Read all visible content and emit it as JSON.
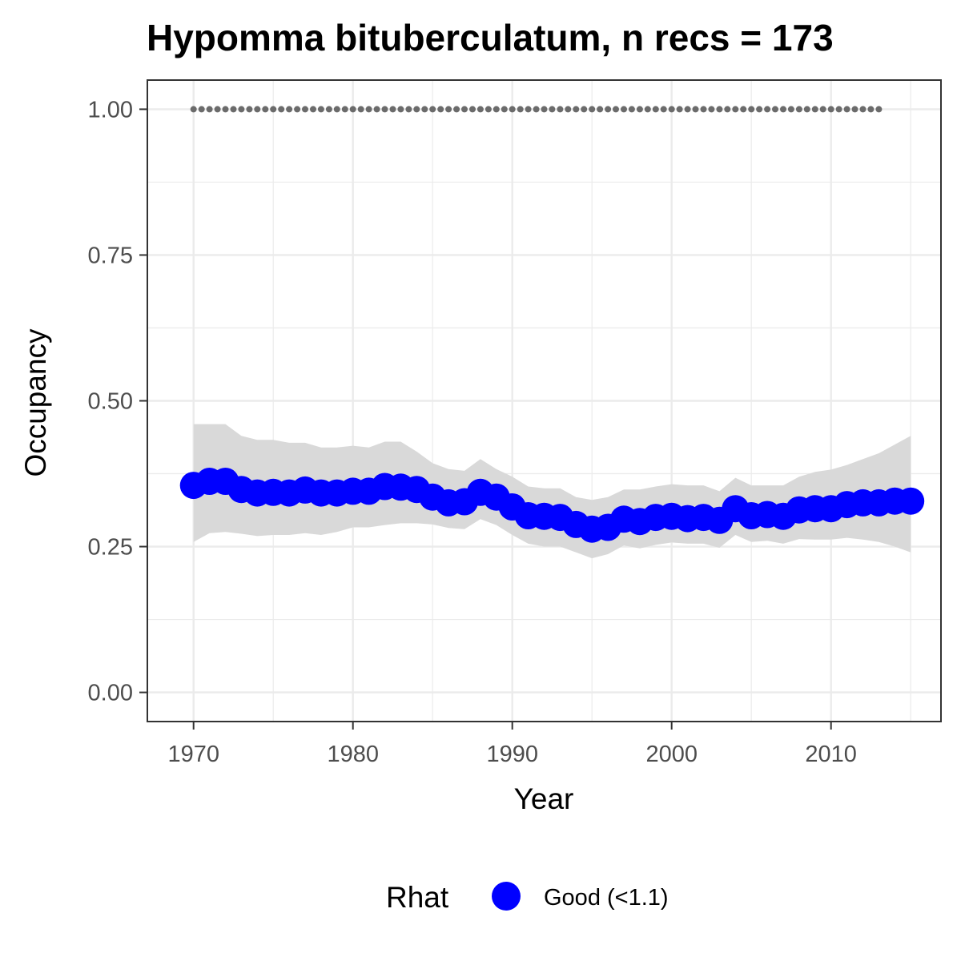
{
  "chart_data": {
    "type": "line",
    "title": "Hypomma bituberculatum, n recs = 173",
    "xlabel": "Year",
    "ylabel": "Occupancy",
    "xlim": [
      1967.1,
      2016.9
    ],
    "ylim": [
      -0.05,
      1.05
    ],
    "x_ticks": [
      1970,
      1980,
      1990,
      2000,
      2010
    ],
    "x_tick_labels": [
      "1970",
      "1980",
      "1990",
      "2000",
      "2010"
    ],
    "y_ticks": [
      0,
      0.25,
      0.5,
      0.75,
      1.0
    ],
    "y_tick_labels": [
      "0.00",
      "0.25",
      "0.50",
      "0.75",
      "1.00"
    ],
    "grid": true,
    "legend": {
      "position": "bottom",
      "title": "Rhat",
      "entries": [
        {
          "label": "Good (<1.1)",
          "color": "#0000ff"
        }
      ]
    },
    "colors": {
      "points": "#0000ff",
      "ribbon": "#d9d9d9",
      "dotted_line": "#6b6b6b",
      "panel_border": "#333333",
      "grid": "#ebebeb"
    },
    "years": [
      1970,
      1971,
      1972,
      1973,
      1974,
      1975,
      1976,
      1977,
      1978,
      1979,
      1980,
      1981,
      1982,
      1983,
      1984,
      1985,
      1986,
      1987,
      1988,
      1989,
      1990,
      1991,
      1992,
      1993,
      1994,
      1995,
      1996,
      1997,
      1998,
      1999,
      2000,
      2001,
      2002,
      2003,
      2004,
      2005,
      2006,
      2007,
      2008,
      2009,
      2010,
      2011,
      2012,
      2013,
      2014,
      2015
    ],
    "series": [
      {
        "values": [
          0.355,
          0.362,
          0.362,
          0.348,
          0.342,
          0.343,
          0.342,
          0.347,
          0.342,
          0.342,
          0.345,
          0.345,
          0.353,
          0.352,
          0.348,
          0.335,
          0.325,
          0.327,
          0.343,
          0.335,
          0.318,
          0.303,
          0.302,
          0.3,
          0.288,
          0.28,
          0.283,
          0.297,
          0.293,
          0.3,
          0.302,
          0.298,
          0.3,
          0.295,
          0.315,
          0.303,
          0.305,
          0.302,
          0.313,
          0.315,
          0.315,
          0.322,
          0.325,
          0.325,
          0.328,
          0.328
        ],
        "lower": [
          0.258,
          0.273,
          0.275,
          0.272,
          0.268,
          0.27,
          0.27,
          0.273,
          0.27,
          0.275,
          0.283,
          0.283,
          0.287,
          0.29,
          0.29,
          0.288,
          0.282,
          0.28,
          0.297,
          0.287,
          0.27,
          0.255,
          0.25,
          0.25,
          0.24,
          0.23,
          0.237,
          0.252,
          0.247,
          0.253,
          0.257,
          0.255,
          0.255,
          0.248,
          0.27,
          0.258,
          0.26,
          0.255,
          0.263,
          0.262,
          0.262,
          0.265,
          0.262,
          0.258,
          0.25,
          0.24
        ],
        "upper": [
          0.46,
          0.46,
          0.46,
          0.44,
          0.433,
          0.433,
          0.428,
          0.428,
          0.42,
          0.42,
          0.423,
          0.42,
          0.43,
          0.43,
          0.413,
          0.393,
          0.383,
          0.38,
          0.4,
          0.383,
          0.37,
          0.353,
          0.35,
          0.35,
          0.335,
          0.33,
          0.335,
          0.348,
          0.348,
          0.353,
          0.357,
          0.355,
          0.355,
          0.345,
          0.368,
          0.355,
          0.355,
          0.355,
          0.37,
          0.378,
          0.382,
          0.39,
          0.4,
          0.41,
          0.425,
          0.44
        ]
      }
    ],
    "dotted_line": {
      "x_start": 1970,
      "x_end": 2013,
      "value": 1.0
    }
  }
}
